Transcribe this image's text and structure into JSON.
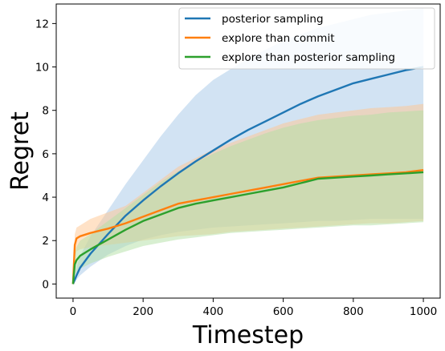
{
  "chart_data": {
    "type": "line",
    "xlabel": "Timestep",
    "ylabel": "Regret",
    "xlim": [
      -48,
      1048
    ],
    "ylim": [
      -0.65,
      12.9
    ],
    "xticks": [
      0,
      200,
      400,
      600,
      800,
      1000
    ],
    "yticks": [
      0,
      2,
      4,
      6,
      8,
      10,
      12
    ],
    "grid": false,
    "legend_position": "top-right",
    "x": [
      0,
      5,
      10,
      20,
      50,
      100,
      150,
      200,
      250,
      300,
      350,
      400,
      450,
      500,
      550,
      600,
      650,
      700,
      750,
      800,
      850,
      900,
      950,
      1000
    ],
    "series": [
      {
        "name": "posterior sampling",
        "color": "#1f77b4",
        "band_color": "#a6c8e8",
        "values": [
          0,
          0.2,
          0.4,
          0.75,
          1.4,
          2.3,
          3.15,
          3.85,
          4.5,
          5.1,
          5.65,
          6.15,
          6.65,
          7.1,
          7.5,
          7.9,
          8.3,
          8.65,
          8.95,
          9.25,
          9.45,
          9.65,
          9.85,
          10.0
        ],
        "lower": [
          0,
          0.1,
          0.2,
          0.4,
          0.8,
          1.35,
          1.75,
          2.05,
          2.25,
          2.4,
          2.5,
          2.6,
          2.65,
          2.7,
          2.75,
          2.8,
          2.85,
          2.9,
          2.9,
          2.95,
          3.0,
          3.0,
          3.0,
          3.0
        ],
        "upper": [
          0,
          0.4,
          0.8,
          1.3,
          2.2,
          3.4,
          4.6,
          5.7,
          6.8,
          7.8,
          8.7,
          9.4,
          9.9,
          10.4,
          10.8,
          11.2,
          11.5,
          11.8,
          12.0,
          12.2,
          12.4,
          12.5,
          12.6,
          12.7
        ]
      },
      {
        "name": "explore than commit",
        "color": "#ff7f0e",
        "band_color": "#ffc690",
        "values": [
          0,
          1.8,
          2.1,
          2.2,
          2.35,
          2.55,
          2.8,
          3.1,
          3.4,
          3.7,
          3.85,
          4.0,
          4.15,
          4.3,
          4.45,
          4.6,
          4.75,
          4.9,
          4.95,
          5.0,
          5.05,
          5.1,
          5.15,
          5.25
        ],
        "lower": [
          0,
          1.2,
          1.5,
          1.6,
          1.7,
          1.8,
          1.9,
          2.0,
          2.1,
          2.2,
          2.25,
          2.3,
          2.4,
          2.45,
          2.5,
          2.55,
          2.6,
          2.65,
          2.7,
          2.75,
          2.8,
          2.8,
          2.85,
          2.9
        ],
        "upper": [
          0,
          2.3,
          2.6,
          2.7,
          3.0,
          3.3,
          3.6,
          4.2,
          4.8,
          5.4,
          5.8,
          6.2,
          6.5,
          6.8,
          7.1,
          7.4,
          7.6,
          7.8,
          7.9,
          8.0,
          8.1,
          8.15,
          8.2,
          8.3
        ]
      },
      {
        "name": "explore than posterior sampling",
        "color": "#2ca02c",
        "band_color": "#b1dfa3",
        "values": [
          0,
          0.9,
          1.1,
          1.3,
          1.6,
          2.05,
          2.5,
          2.9,
          3.2,
          3.5,
          3.7,
          3.85,
          4.0,
          4.15,
          4.3,
          4.45,
          4.65,
          4.85,
          4.9,
          4.95,
          5.0,
          5.05,
          5.1,
          5.15
        ],
        "lower": [
          0,
          0.4,
          0.55,
          0.7,
          0.95,
          1.25,
          1.5,
          1.75,
          1.9,
          2.05,
          2.15,
          2.25,
          2.35,
          2.4,
          2.45,
          2.5,
          2.55,
          2.6,
          2.65,
          2.7,
          2.7,
          2.75,
          2.8,
          2.85
        ],
        "upper": [
          0,
          1.4,
          1.7,
          2.0,
          2.3,
          2.9,
          3.5,
          4.1,
          4.7,
          5.2,
          5.6,
          6.0,
          6.35,
          6.65,
          6.95,
          7.2,
          7.4,
          7.55,
          7.65,
          7.75,
          7.8,
          7.9,
          7.95,
          8.0
        ]
      }
    ]
  }
}
